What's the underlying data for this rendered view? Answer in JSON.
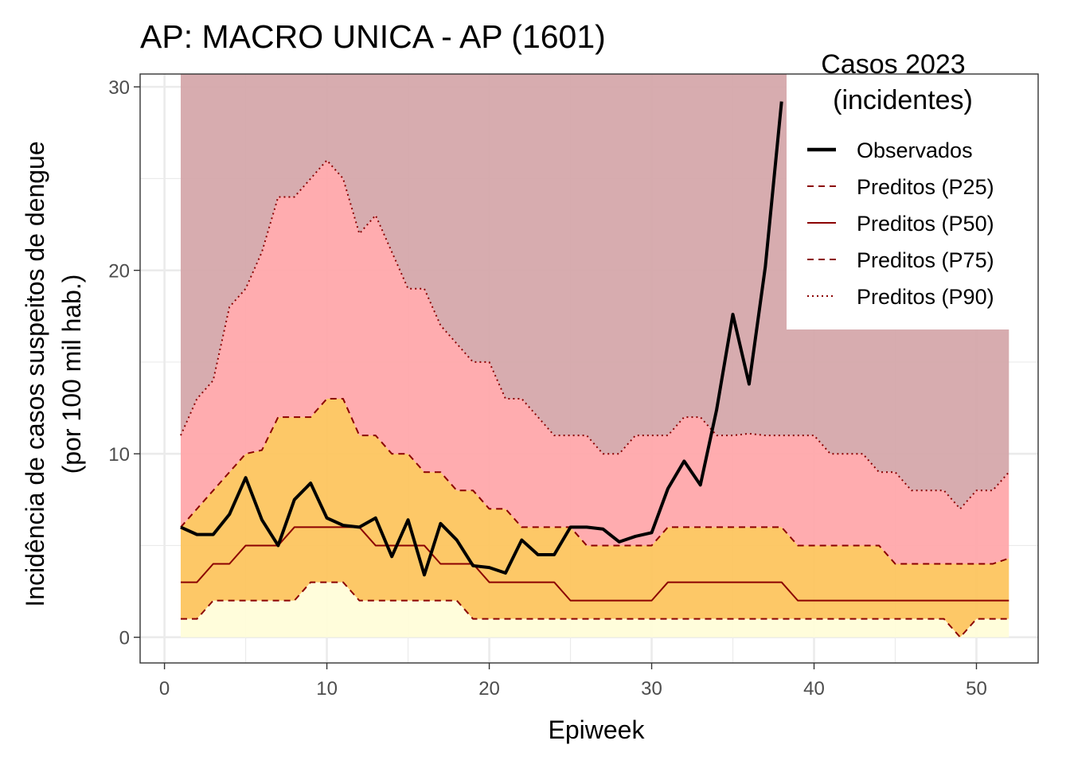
{
  "chart_data": {
    "type": "area",
    "title": "AP: MACRO UNICA - AP (1601)",
    "xlabel": "Epiweek",
    "ylabel": "Incidência de casos suspeitos de dengue",
    "ylabel_line2": "(por 100 mil hab.)",
    "xlim": [
      -1.5,
      53.8
    ],
    "ylim": [
      -1.4,
      30.7
    ],
    "x_ticks": [
      0,
      10,
      20,
      30,
      40,
      50
    ],
    "y_ticks": [
      0,
      10,
      20,
      30
    ],
    "grid": true,
    "legend_position": "top-right",
    "legend": {
      "title_line1": "Casos 2023",
      "title_line2": "(incidentes)",
      "entries": [
        {
          "label": "Observados",
          "style": "solid-thick",
          "color": "#000000"
        },
        {
          "label": "Preditos (P25)",
          "style": "dashed",
          "color": "#8b0000"
        },
        {
          "label": "Preditos (P50)",
          "style": "solid",
          "color": "#8b0000"
        },
        {
          "label": "Preditos (P75)",
          "style": "dashed",
          "color": "#8b0000"
        },
        {
          "label": "Preditos (P90)",
          "style": "dotted",
          "color": "#8b0000"
        }
      ]
    },
    "band_colors": {
      "low": "#fffdd8",
      "mid": "#fdc35a",
      "high": "#ffa5a8",
      "top": "#d4a5a8"
    },
    "weeks": [
      1,
      2,
      3,
      4,
      5,
      6,
      7,
      8,
      9,
      10,
      11,
      12,
      13,
      14,
      15,
      16,
      17,
      18,
      19,
      20,
      21,
      22,
      23,
      24,
      25,
      26,
      27,
      28,
      29,
      30,
      31,
      32,
      33,
      34,
      35,
      36,
      37,
      38,
      39,
      40,
      41,
      42,
      43,
      44,
      45,
      46,
      47,
      48,
      49,
      50,
      51,
      52
    ],
    "p25": [
      1,
      1,
      2,
      2,
      2,
      2,
      2,
      2,
      3,
      3,
      3,
      2,
      2,
      2,
      2,
      2,
      2,
      2,
      1,
      1,
      1,
      1,
      1,
      1,
      1,
      1,
      1,
      1,
      1,
      1,
      1,
      1,
      1,
      1,
      1,
      1,
      1,
      1,
      1,
      1,
      1,
      1,
      1,
      1,
      1,
      1,
      1,
      1,
      0,
      1,
      1,
      1
    ],
    "p50": [
      3,
      3,
      4,
      4,
      5,
      5,
      5,
      6,
      6,
      6,
      6,
      6,
      5,
      5,
      5,
      5,
      4,
      4,
      4,
      3,
      3,
      3,
      3,
      3,
      2,
      2,
      2,
      2,
      2,
      2,
      3,
      3,
      3,
      3,
      3,
      3,
      3,
      3,
      2,
      2,
      2,
      2,
      2,
      2,
      2,
      2,
      2,
      2,
      2,
      2,
      2,
      2
    ],
    "p75": [
      6,
      7,
      8,
      9,
      10,
      10.2,
      12,
      12,
      12,
      13,
      13,
      11,
      11,
      10,
      10,
      9,
      9,
      8,
      8,
      7,
      7,
      6,
      6,
      6,
      6,
      5,
      5,
      5,
      5,
      5,
      6,
      6,
      6,
      6,
      6,
      6,
      6,
      6,
      5,
      5,
      5,
      5,
      5,
      5,
      4,
      4,
      4,
      4,
      4,
      4,
      4,
      4.3
    ],
    "p90": [
      11,
      13,
      14,
      18,
      19,
      21,
      24,
      24,
      25,
      26,
      25,
      22,
      23,
      21,
      19,
      19,
      17,
      16,
      15,
      15,
      13,
      13,
      12,
      11,
      11,
      11,
      10,
      10,
      11,
      11,
      11,
      12,
      12,
      11,
      11,
      11.1,
      11,
      11,
      11,
      11,
      10,
      10,
      10,
      9,
      9,
      8,
      8,
      8,
      7,
      8,
      8,
      9
    ],
    "observed_weeks": [
      1,
      2,
      3,
      4,
      5,
      6,
      7,
      8,
      9,
      10,
      11,
      12,
      13,
      14,
      15,
      16,
      17,
      18,
      19,
      20,
      21,
      22,
      23,
      24,
      25,
      26,
      27,
      28,
      29,
      30,
      31,
      32,
      33,
      34,
      35,
      36,
      37,
      38
    ],
    "observed": [
      6,
      5.6,
      5.6,
      6.7,
      8.7,
      6.4,
      5,
      7.5,
      8.4,
      6.5,
      6.1,
      6,
      6.5,
      4.4,
      6.4,
      3.4,
      6.2,
      5.3,
      3.9,
      3.8,
      3.5,
      5.3,
      4.5,
      4.5,
      6,
      6,
      5.9,
      5.2,
      5.5,
      5.7,
      8.1,
      9.6,
      8.3,
      12.4,
      17.6,
      13.8,
      20.2,
      29.2
    ]
  }
}
